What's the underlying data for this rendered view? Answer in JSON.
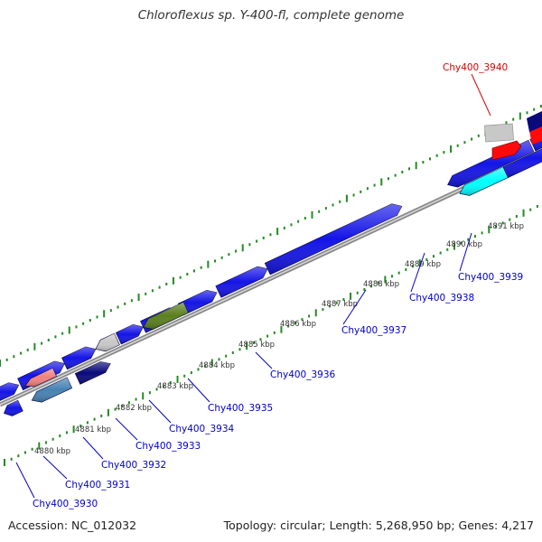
{
  "title": "Chloroflexus sp. Y-400-fl, complete genome",
  "accession": "Accession: NC_012032",
  "summary": "Topology: circular; Length: 5,268,950 bp; Genes: 4,217",
  "colors": {
    "gene_blue": "#1414e6",
    "gene_navy": "#0a0a7a",
    "gene_cyan": "#00ffff",
    "gene_olive": "#5a7f1e",
    "gene_red": "#ff0a0a",
    "gene_gray": "#c8c8c8",
    "gene_pink": "#f08080",
    "gene_steel": "#4682b4",
    "label_blue": "#0000cc",
    "label_red": "#dd0000",
    "ruler_green": "#228b22",
    "backbone": "#888888"
  },
  "ticks": [
    "4880 kbp",
    "4881 kbp",
    "4882 kbp",
    "4883 kbp",
    "4884 kbp",
    "4885 kbp",
    "4886 kbp",
    "4887 kbp",
    "4888 kbp",
    "4889 kbp",
    "4890 kbp",
    "4891 kbp"
  ],
  "genes": [
    {
      "label": "Chy400_3930",
      "color": "label_blue"
    },
    {
      "label": "Chy400_3931",
      "color": "label_blue"
    },
    {
      "label": "Chy400_3932",
      "color": "label_blue"
    },
    {
      "label": "Chy400_3933",
      "color": "label_blue"
    },
    {
      "label": "Chy400_3934",
      "color": "label_blue"
    },
    {
      "label": "Chy400_3935",
      "color": "label_blue"
    },
    {
      "label": "Chy400_3936",
      "color": "label_blue"
    },
    {
      "label": "Chy400_3937",
      "color": "label_blue"
    },
    {
      "label": "Chy400_3938",
      "color": "label_blue"
    },
    {
      "label": "Chy400_3939",
      "color": "label_blue"
    },
    {
      "label": "Chy400_3940",
      "color": "label_red"
    }
  ]
}
